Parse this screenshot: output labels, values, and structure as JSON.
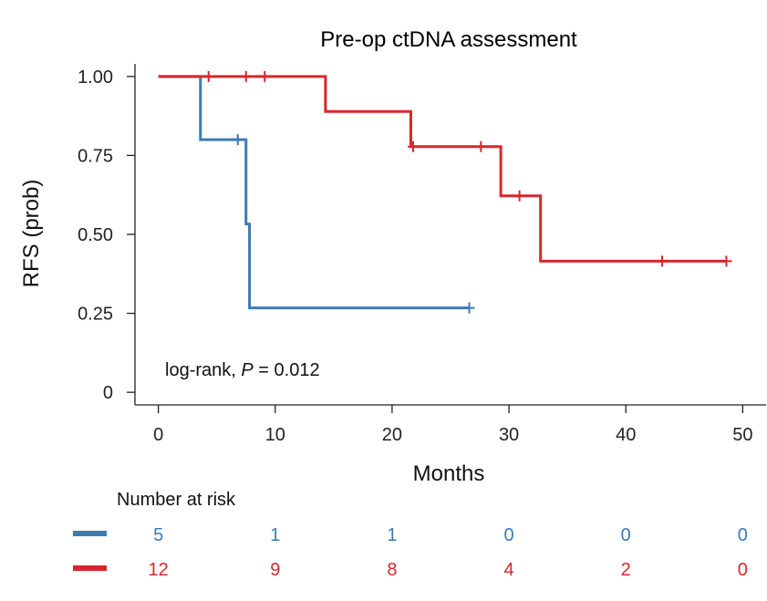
{
  "chart_data": {
    "type": "line",
    "subtype": "kaplan-meier",
    "title": "Pre-op ctDNA assessment",
    "xlabel": "Months",
    "ylabel": "RFS (prob)",
    "xlim": [
      -2,
      52
    ],
    "ylim": [
      -0.04,
      1.04
    ],
    "xticks": [
      0,
      10,
      20,
      30,
      40,
      50
    ],
    "yticks": [
      0,
      0.25,
      0.5,
      0.75,
      1.0
    ],
    "ytick_labels": [
      "0",
      "0.25",
      "0.50",
      "0.75",
      "1.00"
    ],
    "grid": false,
    "series": [
      {
        "name": "blue",
        "color": "#3b7bb5",
        "steps": [
          [
            0,
            1.0
          ],
          [
            3.6,
            0.8
          ],
          [
            7.5,
            0.533
          ],
          [
            7.8,
            0.267
          ],
          [
            26.6,
            0.267
          ]
        ],
        "censors": [
          [
            6.8,
            0.8
          ],
          [
            26.6,
            0.267
          ]
        ]
      },
      {
        "name": "red",
        "color": "#d7272c",
        "steps": [
          [
            0,
            1.0
          ],
          [
            14.3,
            0.889
          ],
          [
            21.6,
            0.778
          ],
          [
            29.3,
            0.622
          ],
          [
            32.7,
            0.415
          ],
          [
            48.6,
            0.415
          ]
        ],
        "censors": [
          [
            4.3,
            1.0
          ],
          [
            7.5,
            1.0
          ],
          [
            9.1,
            1.0
          ],
          [
            21.8,
            0.778
          ],
          [
            27.6,
            0.778
          ],
          [
            30.9,
            0.622
          ],
          [
            43.1,
            0.415
          ],
          [
            48.6,
            0.415
          ]
        ]
      }
    ],
    "annotation": {
      "prefix": "log-rank, ",
      "italic": "P",
      "suffix": " = 0.012"
    },
    "risk_table": {
      "header": "Number at risk",
      "times": [
        0,
        10,
        20,
        30,
        40,
        50
      ],
      "rows": [
        {
          "color": "#3b7bb5",
          "values": [
            5,
            1,
            1,
            0,
            0,
            0
          ]
        },
        {
          "color": "#d7272c",
          "values": [
            12,
            9,
            8,
            4,
            2,
            0
          ]
        }
      ]
    }
  }
}
